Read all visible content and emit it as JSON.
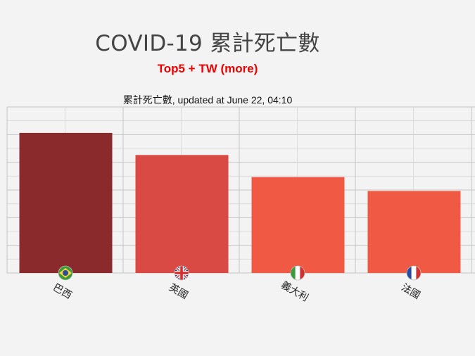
{
  "page": {
    "title": "COVID-19 累計死亡數",
    "subtitle": "Top5 + TW (more)"
  },
  "chart_data": {
    "type": "bar",
    "title": "累計死亡數, updated at June 22, 04:10",
    "categories": [
      "巴西",
      "英國",
      "義大利",
      "法國"
    ],
    "values": [
      50617,
      42632,
      34657,
      29640
    ],
    "colors": [
      "#8b2a2d",
      "#d84a43",
      "#f05a44",
      "#f05a44"
    ],
    "flags": [
      "brazil-flag-icon",
      "uk-flag-icon",
      "italy-flag-icon",
      "france-flag-icon"
    ],
    "ylim": [
      0,
      60000
    ],
    "grid": true,
    "legend": "none"
  }
}
